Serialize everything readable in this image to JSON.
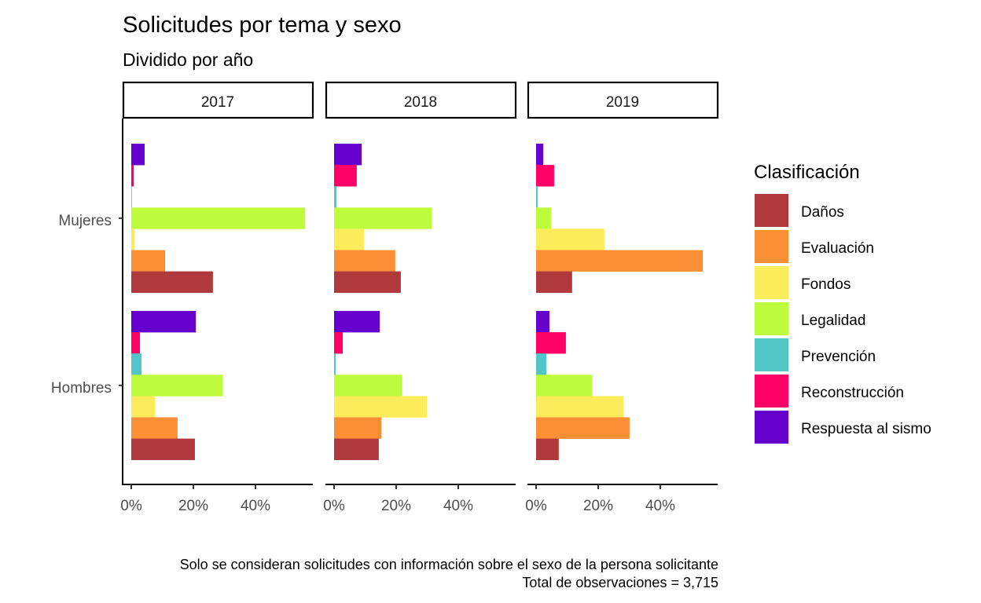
{
  "chart_data": {
    "type": "bar",
    "orientation": "horizontal",
    "title": "Solicitudes por tema y sexo",
    "subtitle": "Dividido por año",
    "caption_lines": [
      "Solo se consideran solicitudes con información sobre el sexo de la persona solicitante",
      "Total de observaciones = 3,715"
    ],
    "xlabel": "",
    "ylabel": "",
    "xlim": [
      0,
      57
    ],
    "x_ticks": [
      0,
      20,
      40
    ],
    "x_tick_labels": [
      "0%",
      "20%",
      "40%"
    ],
    "categories": [
      "Mujeres",
      "Hombres"
    ],
    "facets": [
      "2017",
      "2018",
      "2019"
    ],
    "grid": false,
    "legend": {
      "title": "Clasificación",
      "position": "right",
      "entries": [
        {
          "name": "Daños",
          "color": "#B0393E"
        },
        {
          "name": "Evaluación",
          "color": "#FB8F35"
        },
        {
          "name": "Fondos",
          "color": "#FAEC5A"
        },
        {
          "name": "Legalidad",
          "color": "#BDFB3D"
        },
        {
          "name": "Prevención",
          "color": "#52C6C6"
        },
        {
          "name": "Reconstrucción",
          "color": "#FF0066"
        },
        {
          "name": "Respuesta al sismo",
          "color": "#6600CC"
        }
      ]
    },
    "panels": [
      {
        "facet": "2017",
        "series": [
          {
            "name": "Daños",
            "values": {
              "Mujeres": 26.3,
              "Hombres": 20.5
            }
          },
          {
            "name": "Evaluación",
            "values": {
              "Mujeres": 10.9,
              "Hombres": 14.9
            }
          },
          {
            "name": "Fondos",
            "values": {
              "Mujeres": 1.0,
              "Hombres": 7.6
            }
          },
          {
            "name": "Legalidad",
            "values": {
              "Mujeres": 56.0,
              "Hombres": 29.4
            }
          },
          {
            "name": "Prevención",
            "values": {
              "Mujeres": 0.2,
              "Hombres": 3.3
            }
          },
          {
            "name": "Reconstrucción",
            "values": {
              "Mujeres": 0.8,
              "Hombres": 2.8
            }
          },
          {
            "name": "Respuesta al sismo",
            "values": {
              "Mujeres": 4.3,
              "Hombres": 20.8
            }
          }
        ]
      },
      {
        "facet": "2018",
        "series": [
          {
            "name": "Daños",
            "values": {
              "Mujeres": 21.5,
              "Hombres": 14.4
            }
          },
          {
            "name": "Evaluación",
            "values": {
              "Mujeres": 19.7,
              "Hombres": 15.2
            }
          },
          {
            "name": "Fondos",
            "values": {
              "Mujeres": 9.6,
              "Hombres": 29.9
            }
          },
          {
            "name": "Legalidad",
            "values": {
              "Mujeres": 31.4,
              "Hombres": 21.8
            }
          },
          {
            "name": "Prevención",
            "values": {
              "Mujeres": 0.8,
              "Hombres": 0.5
            }
          },
          {
            "name": "Reconstrucción",
            "values": {
              "Mujeres": 7.3,
              "Hombres": 2.8
            }
          },
          {
            "name": "Respuesta al sismo",
            "values": {
              "Mujeres": 8.9,
              "Hombres": 14.7
            }
          }
        ]
      },
      {
        "facet": "2019",
        "series": [
          {
            "name": "Daños",
            "values": {
              "Mujeres": 11.6,
              "Hombres": 7.3
            }
          },
          {
            "name": "Evaluación",
            "values": {
              "Mujeres": 53.7,
              "Hombres": 30.1
            }
          },
          {
            "name": "Fondos",
            "values": {
              "Mujeres": 22.0,
              "Hombres": 28.1
            }
          },
          {
            "name": "Legalidad",
            "values": {
              "Mujeres": 4.8,
              "Hombres": 18.0
            }
          },
          {
            "name": "Prevención",
            "values": {
              "Mujeres": 0.5,
              "Hombres": 3.3
            }
          },
          {
            "name": "Reconstrucción",
            "values": {
              "Mujeres": 5.8,
              "Hombres": 9.6
            }
          },
          {
            "name": "Respuesta al sismo",
            "values": {
              "Mujeres": 2.3,
              "Hombres": 4.3
            }
          }
        ]
      }
    ]
  }
}
